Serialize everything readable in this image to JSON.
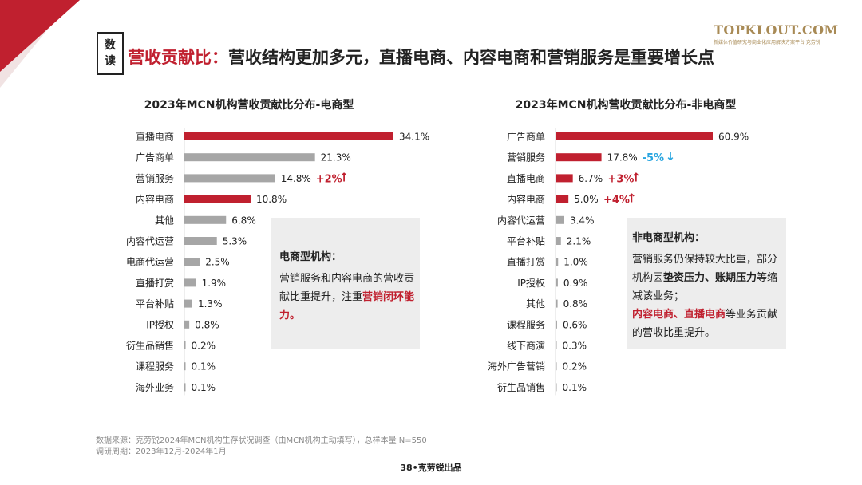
{
  "header": {
    "badge_line1": "数",
    "badge_line2": "读",
    "title_highlight": "营收贡献比：",
    "title_rest": "营收结构更加多元，直播电商、内容电商和营销服务是重要增长点"
  },
  "logo": {
    "main": "TOPKLOUT.COM",
    "sub": "新媒体价值研究与商业化应用解决方案平台 克劳锐"
  },
  "colors": {
    "accent": "#c0202f",
    "gray_bar": "#a6a6a6",
    "increase": "#c0202f",
    "decrease": "#2aa6e0"
  },
  "chart_data": [
    {
      "type": "bar",
      "orientation": "horizontal",
      "title": "2023年MCN机构营收贡献比分布-电商型",
      "categories": [
        "直播电商",
        "广告商单",
        "营销服务",
        "内容电商",
        "其他",
        "内容代运营",
        "电商代运营",
        "直播打赏",
        "平台补贴",
        "IP授权",
        "衍生品销售",
        "课程服务",
        "海外业务"
      ],
      "values": [
        34.1,
        21.3,
        14.8,
        10.8,
        6.8,
        5.3,
        2.5,
        1.9,
        1.3,
        0.8,
        0.2,
        0.1,
        0.1
      ],
      "labels": [
        "34.1%",
        "21.3%",
        "14.8%",
        "10.8%",
        "6.8%",
        "5.3%",
        "2.5%",
        "1.9%",
        "1.3%",
        "0.8%",
        "0.2%",
        "0.1%",
        "0.1%"
      ],
      "highlight": [
        true,
        false,
        false,
        true,
        false,
        false,
        false,
        false,
        false,
        false,
        false,
        false,
        false
      ],
      "annotations": [
        {
          "category": "营销服务",
          "text": "+2%",
          "arrow": "↑",
          "direction": "up"
        }
      ],
      "unit": "%"
    },
    {
      "type": "bar",
      "orientation": "horizontal",
      "title": "2023年MCN机构营收贡献比分布-非电商型",
      "categories": [
        "广告商单",
        "营销服务",
        "直播电商",
        "内容电商",
        "内容代运营",
        "平台补贴",
        "直播打赏",
        "IP授权",
        "其他",
        "课程服务",
        "线下商演",
        "海外广告营销",
        "衍生品销售"
      ],
      "values": [
        60.9,
        17.8,
        6.7,
        5.0,
        3.4,
        2.1,
        1.0,
        0.9,
        0.8,
        0.6,
        0.3,
        0.2,
        0.1
      ],
      "labels": [
        "60.9%",
        "17.8%",
        "6.7%",
        "5.0%",
        "3.4%",
        "2.1%",
        "1.0%",
        "0.9%",
        "0.8%",
        "0.6%",
        "0.3%",
        "0.2%",
        "0.1%"
      ],
      "highlight": [
        true,
        true,
        true,
        true,
        false,
        false,
        false,
        false,
        false,
        false,
        false,
        false,
        false
      ],
      "annotations": [
        {
          "category": "营销服务",
          "text": "-5%",
          "arrow": "↓",
          "direction": "down"
        },
        {
          "category": "直播电商",
          "text": "+3%",
          "arrow": "↑",
          "direction": "up"
        },
        {
          "category": "内容电商",
          "text": "+4%",
          "arrow": "↑",
          "direction": "up"
        }
      ],
      "unit": "%"
    }
  ],
  "notes": {
    "left": {
      "title": "电商型机构：",
      "body": "营销服务和内容电商的营收贡献比重提升，注重",
      "red": "营销闭环能力。"
    },
    "right": {
      "title": "非电商型机构：",
      "body1": "营销服务仍保持较大比重，部分机构因",
      "bold": "垫资压力、账期压力",
      "body2": "等缩减该业务；",
      "red": "内容电商、直播电商",
      "body3": "等业务贡献的营收比重提升。"
    }
  },
  "footer": {
    "source": "数据来源：克劳锐2024年MCN机构生存状况调查（由MCN机构主动填写），总样本量 N=550",
    "period": "调研周期：2023年12月-2024年1月"
  },
  "page_label": "38•克劳锐出品"
}
